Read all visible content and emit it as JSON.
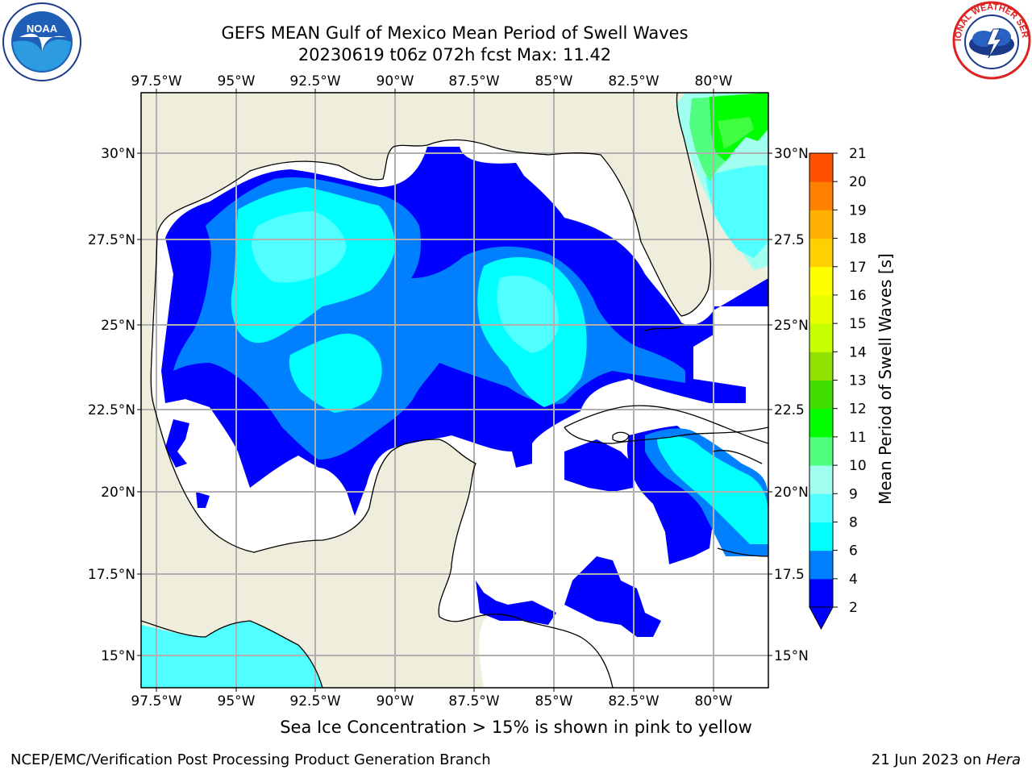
{
  "header": {
    "title": "GEFS MEAN Gulf of Mexico Mean Period of Swell Waves",
    "subtitle": "20230619 t06z 072h fcst   Max: 11.42",
    "noaa_logo_text": "NOAA",
    "nws_logo_text": "NATIONAL WEATHER SERVICE"
  },
  "map": {
    "lon_labels": [
      "97.5°W",
      "95°W",
      "92.5°W",
      "90°W",
      "87.5°W",
      "85°W",
      "82.5°W",
      "80°W"
    ],
    "lat_labels_left": [
      "30°N",
      "27.5°N",
      "25°N",
      "22.5°N",
      "20°N",
      "17.5°N",
      "15°N"
    ],
    "lat_labels_right": [
      "30°N",
      "27.5",
      "25°N",
      "22.5",
      "20°N",
      "17.5",
      "15°N"
    ],
    "colors": {
      "land": "#efeedd",
      "ocean_no_data": "#ffffff",
      "grid": "#b0b0b0",
      "c2_4": "#0000ff",
      "c4_6": "#0080ff",
      "c6_8": "#00ffff",
      "c8_9": "#50ffff",
      "c9_10": "#a0ffee",
      "c10_11": "#40ff40"
    }
  },
  "colorbar": {
    "label": "Mean Period of Swell Waves [s]",
    "ticks": [
      "2",
      "4",
      "6",
      "8",
      "9",
      "10",
      "11",
      "12",
      "13",
      "14",
      "15",
      "16",
      "17",
      "18",
      "19",
      "20",
      "21"
    ],
    "colors": [
      "#0000ff",
      "#0080ff",
      "#00ffff",
      "#50ffff",
      "#a0ffee",
      "#50ff80",
      "#00ff00",
      "#40dd00",
      "#90e000",
      "#c8ff00",
      "#e8ff00",
      "#ffff00",
      "#ffd000",
      "#ffb000",
      "#ff8000",
      "#ff5000",
      "#ff2000",
      "#ff0000"
    ],
    "under_color": "#0000ff"
  },
  "footer": {
    "note": "Sea Ice Concentration > 15% is shown in pink to yellow",
    "left": "NCEP/EMC/Verification Post Processing Product Generation Branch",
    "right_prefix": "21 Jun 2023 on ",
    "right_host": "Hera"
  }
}
